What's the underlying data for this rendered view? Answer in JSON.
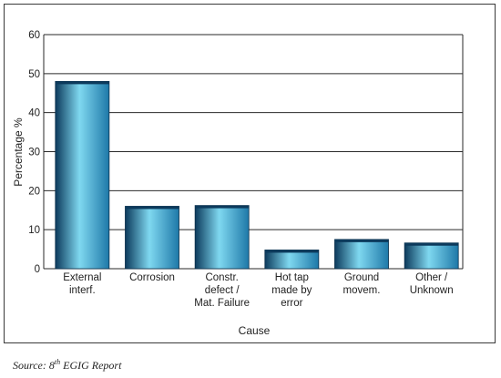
{
  "chart_data": {
    "type": "bar",
    "categories": [
      [
        "External",
        "interf."
      ],
      [
        "Corrosion"
      ],
      [
        "Constr.",
        "defect /",
        "Mat. Failure"
      ],
      [
        "Hot tap",
        "made by",
        "error"
      ],
      [
        "Ground",
        "movem."
      ],
      [
        "Other /",
        "Unknown"
      ]
    ],
    "values": [
      48,
      16,
      16.2,
      4.8,
      7.5,
      6.6
    ],
    "xlabel": "Cause",
    "ylabel": "Percentage %",
    "ylim": [
      0,
      60
    ],
    "yticks": [
      0,
      10,
      20,
      30,
      40,
      50,
      60
    ],
    "grid": true,
    "bar_color_dark": "#0c3a5c",
    "bar_color_mid": "#1e78a8",
    "bar_color_light": "#7fd8f0"
  },
  "source": {
    "prefix": "Source: 8",
    "superscript": "th",
    "suffix": " EGIG Report"
  }
}
